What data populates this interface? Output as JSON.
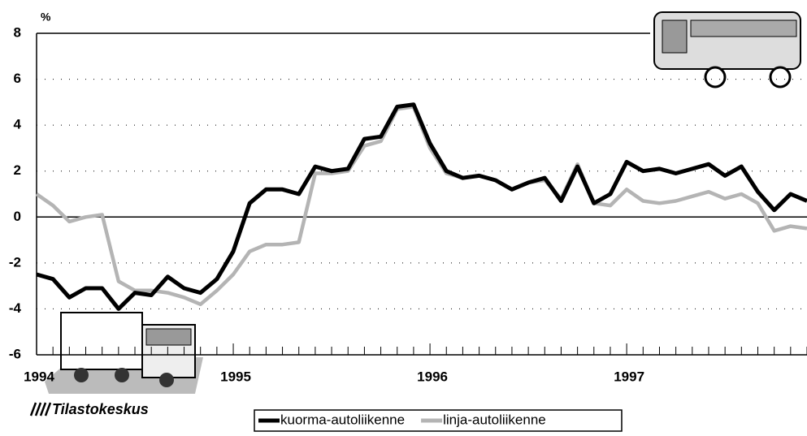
{
  "chart_data": {
    "type": "line",
    "y_label": "%",
    "brand": "Tilastokeskus",
    "categories": [
      "1994",
      null,
      null,
      null,
      null,
      null,
      null,
      null,
      null,
      null,
      null,
      null,
      "1995",
      null,
      null,
      null,
      null,
      null,
      null,
      null,
      null,
      null,
      null,
      null,
      "1996",
      null,
      null,
      null,
      null,
      null,
      null,
      null,
      null,
      null,
      null,
      null,
      "1997",
      null,
      null,
      null,
      null,
      null,
      null,
      null,
      null,
      null,
      null,
      null
    ],
    "series": [
      {
        "name": "kuorma-autoliikenne",
        "color": "#000000",
        "values": [
          -2.5,
          -2.7,
          -3.5,
          -3.1,
          -3.1,
          -4.0,
          -3.3,
          -3.4,
          -2.6,
          -3.1,
          -3.3,
          -2.7,
          -1.5,
          0.6,
          1.2,
          1.2,
          1.0,
          2.2,
          2.0,
          2.1,
          3.4,
          3.5,
          4.8,
          4.9,
          3.2,
          2.0,
          1.7,
          1.8,
          1.6,
          1.2,
          1.5,
          1.7,
          0.7,
          2.2,
          0.6,
          1.0,
          2.4,
          2.0,
          2.1,
          1.9,
          2.1,
          2.3,
          1.8,
          2.2,
          1.1,
          0.3,
          1.0,
          0.7
        ]
      },
      {
        "name": "linja-autoliikenne",
        "color": "#b4b4b4",
        "values": [
          1.0,
          0.5,
          -0.2,
          0.0,
          0.1,
          -2.8,
          -3.2,
          -3.2,
          -3.3,
          -3.5,
          -3.8,
          -3.2,
          -2.5,
          -1.5,
          -1.2,
          -1.2,
          -1.1,
          1.9,
          1.9,
          2.0,
          3.1,
          3.3,
          4.7,
          4.8,
          3.0,
          1.9,
          1.7,
          1.8,
          1.6,
          1.2,
          1.5,
          1.6,
          0.8,
          2.3,
          0.6,
          0.5,
          1.2,
          0.7,
          0.6,
          0.7,
          0.9,
          1.1,
          0.8,
          1.0,
          0.6,
          -0.6,
          -0.4,
          -0.5
        ]
      }
    ],
    "ylim": [
      -6,
      8
    ],
    "yticks": [
      8,
      6,
      4,
      2,
      0,
      -2,
      -4,
      -6
    ],
    "grid": true
  }
}
